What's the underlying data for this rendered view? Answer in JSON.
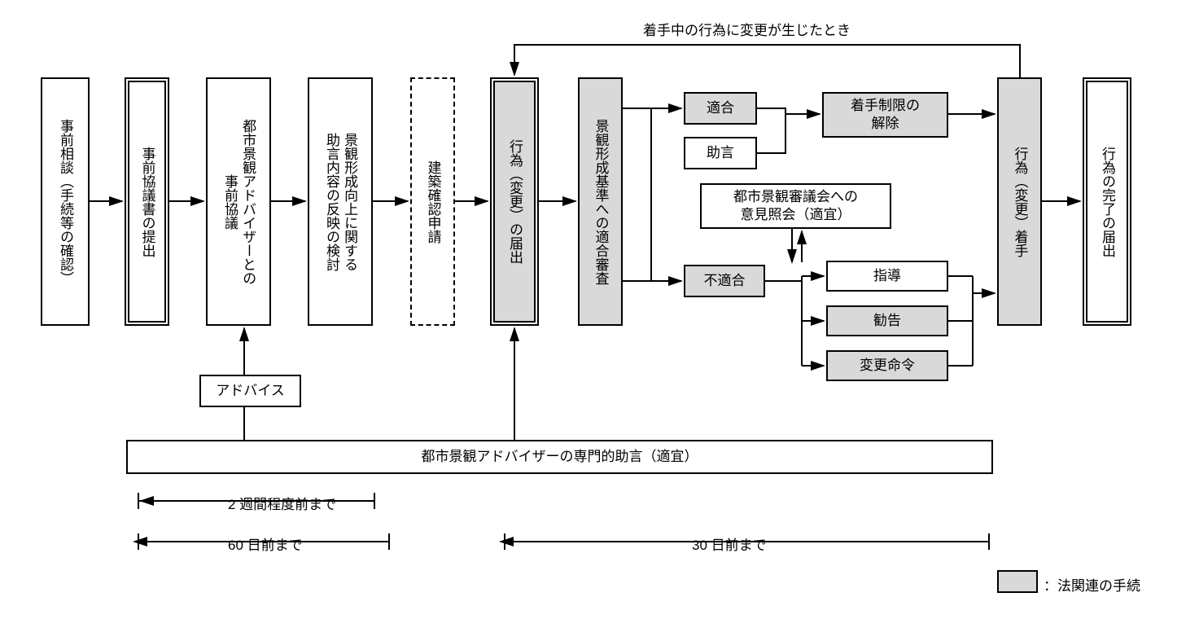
{
  "type": "flowchart",
  "background_color": "#ffffff",
  "line_color": "#000000",
  "fill_grey": "#d9d9d9",
  "font_size": 17,
  "nodes": {
    "n1": {
      "label": "事前相談（手続等の確認）"
    },
    "n2": {
      "label": "事前協議書の提出"
    },
    "n3": {
      "label": "都市景観アドバイザーとの\n事前協議"
    },
    "n4": {
      "label": "景観形成向上に関する\n助言内容の反映の検討"
    },
    "n5": {
      "label": "建築確認申請"
    },
    "n6": {
      "label": "行為（変更）の届出"
    },
    "n7": {
      "label": "景観形成基準への適合審査"
    },
    "n8": {
      "label": "適合"
    },
    "n9": {
      "label": "助言"
    },
    "n10": {
      "label": "着手制限の\n解除"
    },
    "n11": {
      "label": "不適合"
    },
    "n12": {
      "label": "都市景観審議会への\n意見照会（適宜）"
    },
    "n13": {
      "label": "指導"
    },
    "n14": {
      "label": "勧告"
    },
    "n15": {
      "label": "変更命令"
    },
    "n16": {
      "label": "行為（変更）着手"
    },
    "n17": {
      "label": "行為の完了の届出"
    },
    "n18": {
      "label": "アドバイス"
    },
    "n19": {
      "label": "都市景観アドバイザーの専門的助言（適宜）"
    }
  },
  "labels": {
    "top": "着手中の行為に変更が生じたとき",
    "t2w": "2 週間程度前まで",
    "t60": "60 日前まで",
    "t30": "30 日前まで",
    "legend": "：法関連の手続"
  }
}
